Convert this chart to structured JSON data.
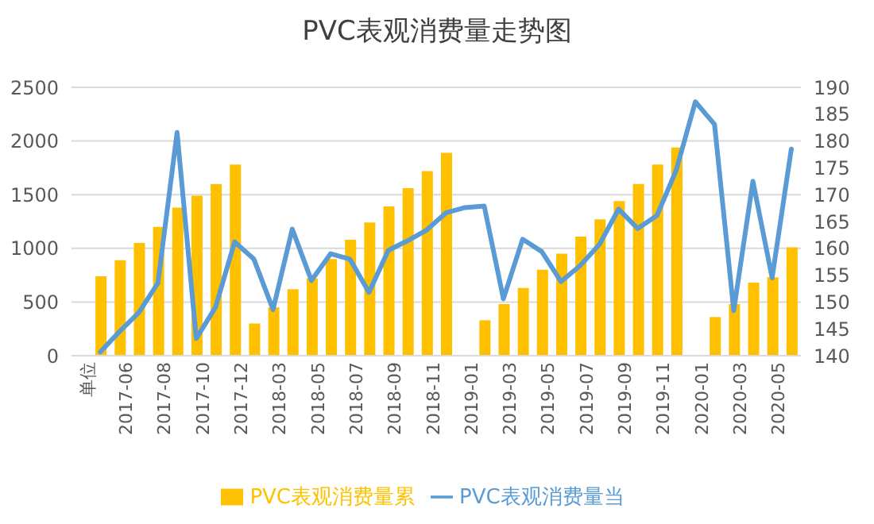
{
  "chart_data": {
    "type": "bar",
    "title": "PVC表观消费量走势图",
    "categories": [
      "单位",
      null,
      "2017-06",
      null,
      "2017-08",
      null,
      "2017-10",
      null,
      "2017-12",
      null,
      "2018-03",
      null,
      "2018-05",
      null,
      "2018-07",
      null,
      "2018-09",
      null,
      "2018-11",
      null,
      "2019-01",
      null,
      "2019-03",
      null,
      "2019-05",
      null,
      "2019-07",
      null,
      "2019-09",
      null,
      "2019-11",
      null,
      "2020-01",
      null,
      "2020-03",
      null,
      "2020-05",
      null
    ],
    "series": [
      {
        "name": "PVC表观消费量累",
        "color": "#ffc000",
        "values": [
          null,
          740,
          890,
          1050,
          1200,
          1380,
          1490,
          1600,
          1780,
          300,
          450,
          620,
          720,
          900,
          1080,
          1240,
          1390,
          1560,
          1720,
          1890,
          null,
          330,
          480,
          630,
          800,
          950,
          1110,
          1270,
          1440,
          1600,
          1780,
          1940,
          null,
          360,
          480,
          680,
          730,
          1010
        ]
      },
      {
        "name": "PVC表观消费量当",
        "type": "line",
        "axis": "y2",
        "color": "#5b9bd5",
        "values": [
          null,
          140.7,
          144.5,
          148,
          153.5,
          181.6,
          143.2,
          149,
          161.2,
          158,
          148.6,
          163.6,
          154,
          159,
          158,
          151.8,
          159.6,
          161.4,
          163.4,
          166.6,
          167.6,
          167.9,
          150.6,
          161.7,
          159.4,
          153.8,
          156.8,
          160.7,
          167.3,
          163.7,
          166.1,
          174.5,
          187.3,
          183.1,
          148.4,
          172.5,
          154.5,
          178.5
        ]
      }
    ],
    "ylim": [
      0,
      2500
    ],
    "yticks": [
      0,
      500,
      1000,
      1500,
      2000,
      2500
    ],
    "y2lim": [
      140,
      190
    ],
    "y2ticks": [
      140,
      145,
      150,
      155,
      160,
      165,
      170,
      175,
      180,
      185,
      190
    ],
    "grid": "y",
    "legend": "bottom",
    "marker": "none",
    "line_style": "solid"
  }
}
